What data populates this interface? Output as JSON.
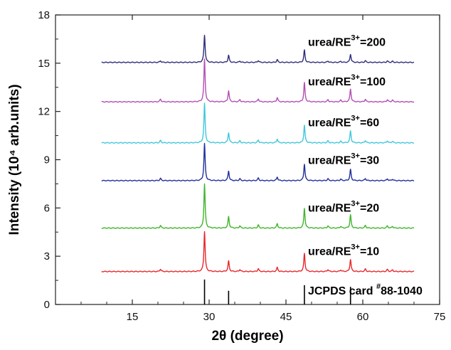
{
  "chart_data": {
    "type": "line",
    "xlabel": "2θ (degree)",
    "ylabel": "Intensity (10⁴ arb.units)",
    "xlim": [
      0,
      75
    ],
    "ylim": [
      0,
      18
    ],
    "xticks": [
      15,
      30,
      45,
      60,
      75
    ],
    "yticks": [
      0,
      3,
      6,
      9,
      12,
      15,
      18
    ],
    "x_range": [
      9,
      70
    ],
    "peaks": [
      {
        "pos": 20.5,
        "rel": 0.06
      },
      {
        "pos": 29.1,
        "rel": 1.0
      },
      {
        "pos": 33.8,
        "rel": 0.26
      },
      {
        "pos": 36.0,
        "rel": 0.05
      },
      {
        "pos": 39.6,
        "rel": 0.07
      },
      {
        "pos": 43.3,
        "rel": 0.1
      },
      {
        "pos": 48.6,
        "rel": 0.45
      },
      {
        "pos": 53.2,
        "rel": 0.05
      },
      {
        "pos": 55.7,
        "rel": 0.04
      },
      {
        "pos": 57.6,
        "rel": 0.3
      },
      {
        "pos": 60.5,
        "rel": 0.06
      },
      {
        "pos": 64.8,
        "rel": 0.05
      },
      {
        "pos": 65.8,
        "rel": 0.04
      }
    ],
    "series": [
      {
        "name": "urea/RE3+=10",
        "label_base": "urea/RE",
        "label_sup": "3+",
        "label_tail": "=10",
        "color": "#e8262a",
        "baseline": 2.05,
        "peak_height": 2.5
      },
      {
        "name": "urea/RE3+=20",
        "label_base": "urea/RE",
        "label_sup": "3+",
        "label_tail": "=20",
        "color": "#3fb52a",
        "baseline": 4.75,
        "peak_height": 2.75
      },
      {
        "name": "urea/RE3+=30",
        "label_base": "urea/RE",
        "label_sup": "3+",
        "label_tail": "=30",
        "color": "#1f2f9a",
        "baseline": 7.7,
        "peak_height": 2.3
      },
      {
        "name": "urea/RE3+=60",
        "label_base": "urea/RE",
        "label_sup": "3+",
        "label_tail": "=60",
        "color": "#40c7dc",
        "baseline": 10.05,
        "peak_height": 2.45
      },
      {
        "name": "urea/RE3+=100",
        "label_base": "urea/RE",
        "label_sup": "3+",
        "label_tail": "=100",
        "color": "#b24fb4",
        "baseline": 12.6,
        "peak_height": 2.65
      },
      {
        "name": "urea/RE3+=200",
        "label_base": "urea/RE",
        "label_sup": "3+",
        "label_tail": "=200",
        "color": "#2d2c7c",
        "baseline": 15.05,
        "peak_height": 1.7
      }
    ],
    "reference": {
      "label_base": "JCPDS card ",
      "label_sup": "#",
      "label_tail": "88-1040",
      "color": "#000000",
      "lines": [
        {
          "pos": 29.1,
          "height": 1.55
        },
        {
          "pos": 33.8,
          "height": 0.85
        },
        {
          "pos": 48.6,
          "height": 1.2
        },
        {
          "pos": 57.6,
          "height": 1.1
        }
      ]
    }
  }
}
